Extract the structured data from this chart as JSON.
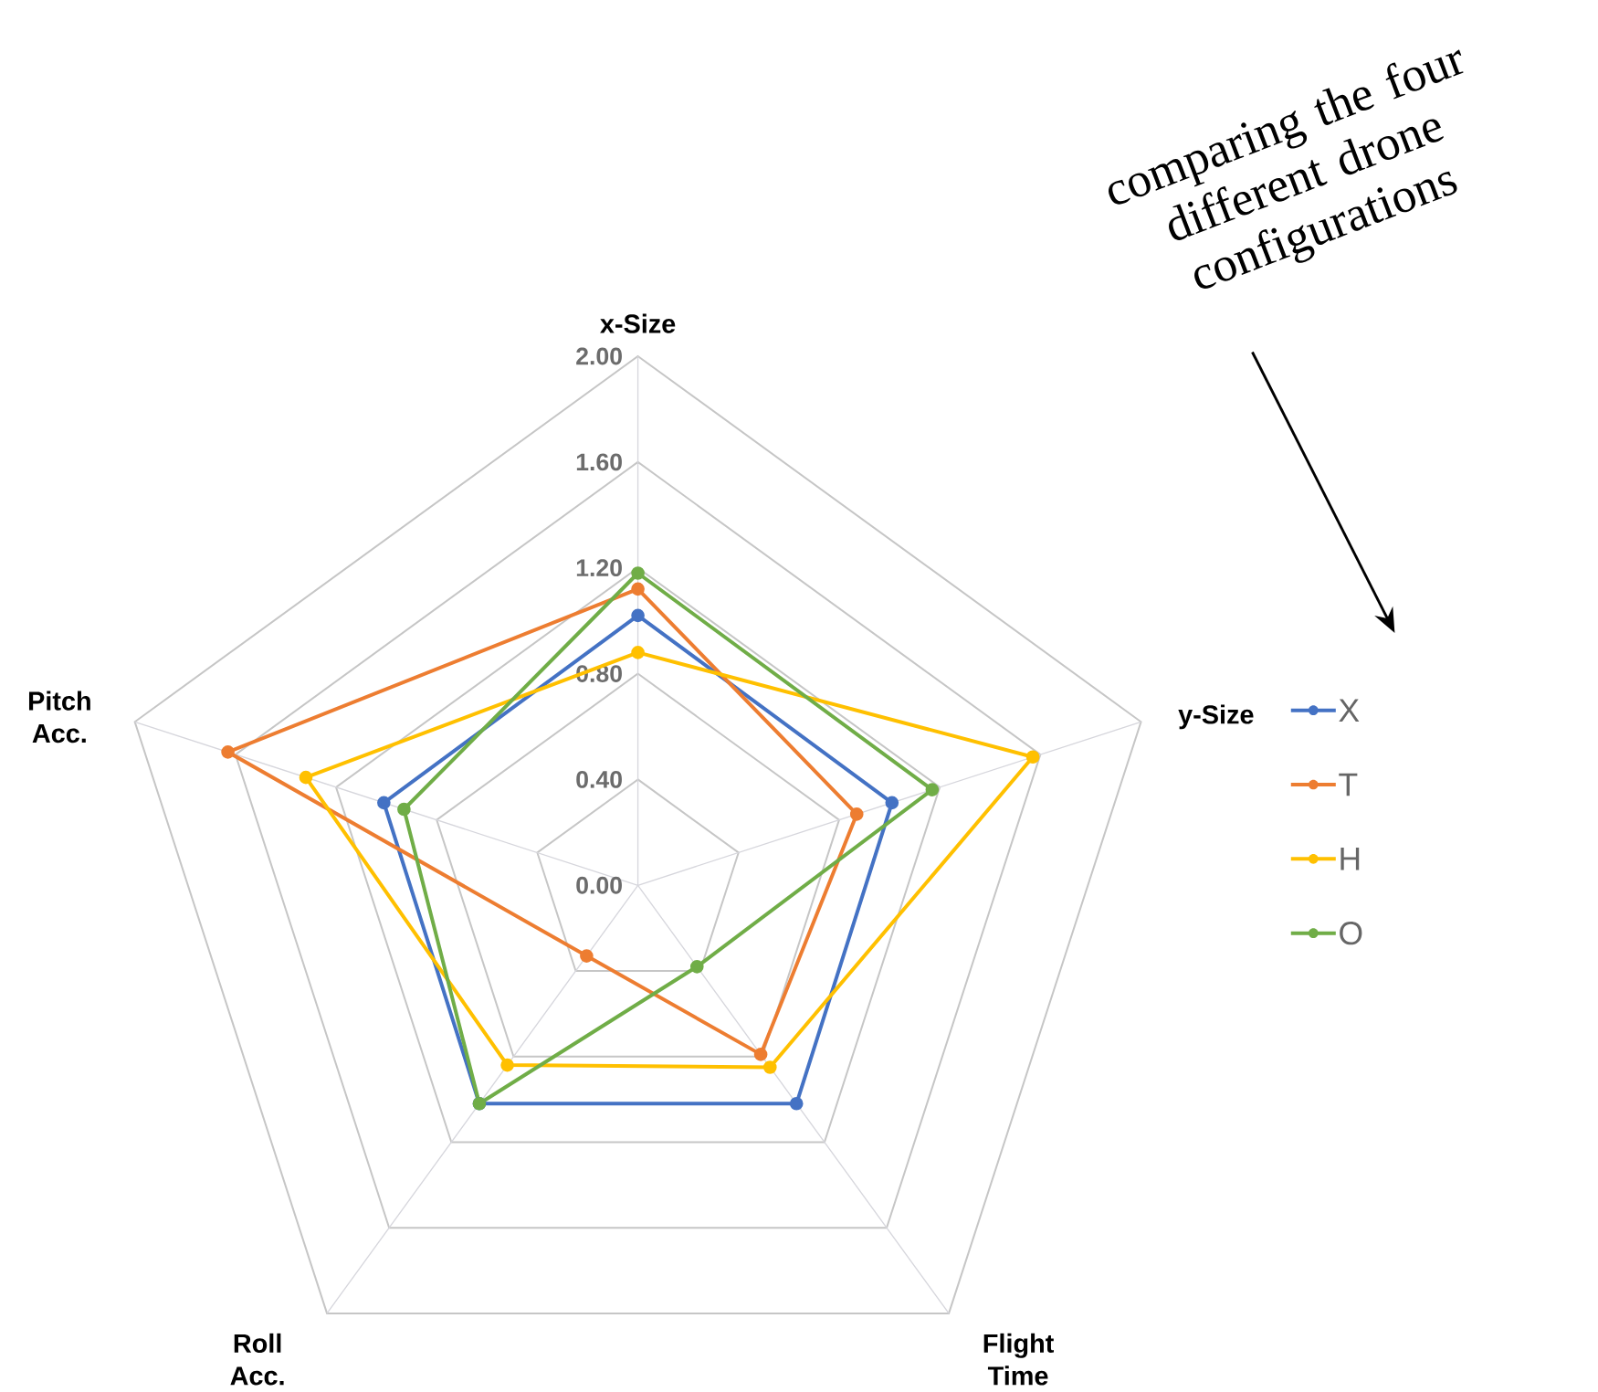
{
  "chart_data": {
    "type": "radar",
    "categories": [
      "x-Size",
      "y-Size",
      "Flight Time",
      "Roll Acc.",
      "Pitch Acc."
    ],
    "series": [
      {
        "name": "X",
        "color": "#4472c4",
        "values": [
          1.02,
          1.01,
          1.02,
          1.02,
          1.01
        ]
      },
      {
        "name": "T",
        "color": "#ed7d31",
        "values": [
          1.12,
          0.87,
          0.79,
          0.33,
          1.63
        ]
      },
      {
        "name": "H",
        "color": "#ffc000",
        "values": [
          0.88,
          1.57,
          0.85,
          0.84,
          1.32
        ]
      },
      {
        "name": "O",
        "color": "#70ad47",
        "values": [
          1.18,
          1.17,
          0.38,
          1.02,
          0.93
        ]
      }
    ],
    "ylim": [
      0,
      2
    ],
    "yticks": [
      {
        "value": 0,
        "label": "0.00"
      },
      {
        "value": 0.4,
        "label": "0.40"
      },
      {
        "value": 0.8,
        "label": "0.80"
      },
      {
        "value": 1.2,
        "label": "1.20"
      },
      {
        "value": 1.6,
        "label": "1.60"
      },
      {
        "value": 2,
        "label": "2.00"
      }
    ],
    "grid": true,
    "legend": "right",
    "marker": "circle",
    "line_style": "solid",
    "annotations": [
      "comparing the four different drone configurations"
    ]
  }
}
